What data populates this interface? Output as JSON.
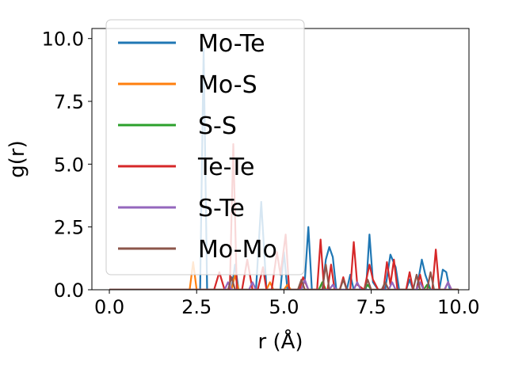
{
  "chart_data": {
    "type": "line",
    "title": "",
    "xlabel": "r (Å)",
    "ylabel": "g(r)",
    "xlim": [
      -0.5,
      10.3
    ],
    "ylim": [
      0,
      10.4
    ],
    "xticks": [
      0.0,
      2.5,
      5.0,
      7.5,
      10.0
    ],
    "xtick_labels": [
      "0.0",
      "2.5",
      "5.0",
      "7.5",
      "10.0"
    ],
    "yticks": [
      0.0,
      2.5,
      5.0,
      7.5,
      10.0
    ],
    "ytick_labels": [
      "0.0",
      "2.5",
      "5.0",
      "7.5",
      "10.0"
    ],
    "grid": false,
    "legend_position": "upper-left",
    "series": [
      {
        "name": "Mo-Te",
        "color": "#1f77b4",
        "points": [
          [
            0,
            0
          ],
          [
            2.6,
            0
          ],
          [
            2.7,
            9.6
          ],
          [
            2.8,
            0
          ],
          [
            3.5,
            0
          ],
          [
            3.6,
            1.0
          ],
          [
            3.7,
            0
          ],
          [
            4.2,
            0
          ],
          [
            4.35,
            3.5
          ],
          [
            4.5,
            0
          ],
          [
            4.9,
            0
          ],
          [
            5.0,
            1.5
          ],
          [
            5.1,
            0
          ],
          [
            5.5,
            0
          ],
          [
            5.6,
            0.4
          ],
          [
            5.7,
            2.5
          ],
          [
            5.8,
            0
          ],
          [
            6.1,
            0
          ],
          [
            6.2,
            1.2
          ],
          [
            6.3,
            1.7
          ],
          [
            6.4,
            1.3
          ],
          [
            6.5,
            0
          ],
          [
            6.8,
            0
          ],
          [
            6.9,
            0.6
          ],
          [
            7.0,
            0
          ],
          [
            7.35,
            0
          ],
          [
            7.45,
            2.2
          ],
          [
            7.55,
            0.3
          ],
          [
            7.7,
            0
          ],
          [
            7.9,
            0
          ],
          [
            8.05,
            1.4
          ],
          [
            8.2,
            0.9
          ],
          [
            8.3,
            0
          ],
          [
            8.5,
            0
          ],
          [
            8.6,
            0.4
          ],
          [
            8.7,
            0
          ],
          [
            8.8,
            0
          ],
          [
            8.95,
            1.2
          ],
          [
            9.05,
            0.6
          ],
          [
            9.2,
            0
          ],
          [
            9.45,
            0
          ],
          [
            9.55,
            0.8
          ],
          [
            9.65,
            0.7
          ],
          [
            9.75,
            0
          ],
          [
            10.0,
            0
          ]
        ]
      },
      {
        "name": "Mo-S",
        "color": "#ff7f0e",
        "points": [
          [
            0,
            0
          ],
          [
            2.3,
            0
          ],
          [
            2.4,
            1.1
          ],
          [
            2.5,
            0
          ],
          [
            3.5,
            0
          ],
          [
            3.6,
            0.6
          ],
          [
            3.7,
            0
          ],
          [
            4.5,
            0
          ],
          [
            4.6,
            0.3
          ],
          [
            4.7,
            0
          ],
          [
            5.0,
            0
          ],
          [
            5.1,
            0.2
          ],
          [
            5.2,
            0
          ],
          [
            6.0,
            0
          ],
          [
            6.1,
            0.3
          ],
          [
            6.2,
            0
          ],
          [
            10.0,
            0
          ]
        ]
      },
      {
        "name": "S-S",
        "color": "#2ca02c",
        "points": [
          [
            0,
            0
          ],
          [
            6.0,
            0
          ],
          [
            6.1,
            0.3
          ],
          [
            6.2,
            0
          ],
          [
            7.3,
            0
          ],
          [
            7.4,
            0.2
          ],
          [
            7.5,
            0
          ],
          [
            9.0,
            0
          ],
          [
            9.1,
            0.2
          ],
          [
            9.2,
            0
          ],
          [
            10.0,
            0
          ]
        ]
      },
      {
        "name": "Te-Te",
        "color": "#d62728",
        "points": [
          [
            0,
            0
          ],
          [
            3.0,
            0
          ],
          [
            3.15,
            0.7
          ],
          [
            3.3,
            0
          ],
          [
            3.45,
            0
          ],
          [
            3.55,
            5.8
          ],
          [
            3.65,
            0
          ],
          [
            3.8,
            0
          ],
          [
            3.95,
            1.2
          ],
          [
            4.1,
            0
          ],
          [
            4.25,
            0
          ],
          [
            4.4,
            0.9
          ],
          [
            4.5,
            0
          ],
          [
            4.65,
            0
          ],
          [
            4.8,
            1.5
          ],
          [
            4.9,
            0.6
          ],
          [
            5.05,
            2.2
          ],
          [
            5.15,
            0
          ],
          [
            5.45,
            0
          ],
          [
            5.55,
            0.5
          ],
          [
            5.7,
            0
          ],
          [
            5.95,
            0
          ],
          [
            6.05,
            2.0
          ],
          [
            6.15,
            0
          ],
          [
            6.25,
            0
          ],
          [
            6.35,
            1.0
          ],
          [
            6.45,
            0
          ],
          [
            6.6,
            0
          ],
          [
            6.7,
            0.5
          ],
          [
            6.8,
            0
          ],
          [
            6.9,
            0
          ],
          [
            7.0,
            1.9
          ],
          [
            7.1,
            0.2
          ],
          [
            7.3,
            0
          ],
          [
            7.45,
            1.0
          ],
          [
            7.55,
            0.4
          ],
          [
            7.7,
            0
          ],
          [
            7.85,
            0
          ],
          [
            7.95,
            1.1
          ],
          [
            8.05,
            0.2
          ],
          [
            8.15,
            1.2
          ],
          [
            8.25,
            0
          ],
          [
            8.5,
            0
          ],
          [
            8.6,
            0.7
          ],
          [
            8.7,
            0
          ],
          [
            8.8,
            0
          ],
          [
            8.9,
            0.6
          ],
          [
            9.0,
            0
          ],
          [
            9.25,
            0
          ],
          [
            9.35,
            1.6
          ],
          [
            9.45,
            0
          ],
          [
            9.6,
            0
          ],
          [
            9.7,
            0.3
          ],
          [
            9.8,
            0
          ],
          [
            10.0,
            0
          ]
        ]
      },
      {
        "name": "S-Te",
        "color": "#9467bd",
        "points": [
          [
            0,
            0
          ],
          [
            3.3,
            0
          ],
          [
            3.4,
            0.3
          ],
          [
            3.5,
            0
          ],
          [
            4.0,
            0
          ],
          [
            4.1,
            0.3
          ],
          [
            4.2,
            0
          ],
          [
            5.5,
            0
          ],
          [
            5.6,
            0.4
          ],
          [
            5.7,
            0
          ],
          [
            6.3,
            0
          ],
          [
            6.4,
            0.2
          ],
          [
            6.5,
            0
          ],
          [
            7.0,
            0
          ],
          [
            7.1,
            0.3
          ],
          [
            7.2,
            0
          ],
          [
            8.0,
            0
          ],
          [
            8.1,
            0.3
          ],
          [
            8.2,
            0
          ],
          [
            8.8,
            0
          ],
          [
            8.9,
            0.3
          ],
          [
            9.0,
            0
          ],
          [
            9.6,
            0
          ],
          [
            9.7,
            0.3
          ],
          [
            9.8,
            0
          ],
          [
            9.9,
            0
          ]
        ]
      },
      {
        "name": "Mo-Mo",
        "color": "#8c564b",
        "points": [
          [
            0,
            0
          ],
          [
            3.4,
            0
          ],
          [
            3.5,
            0.5
          ],
          [
            3.6,
            0
          ],
          [
            5.4,
            0
          ],
          [
            5.5,
            0.4
          ],
          [
            5.6,
            0
          ],
          [
            6.1,
            0
          ],
          [
            6.2,
            1.0
          ],
          [
            6.3,
            0
          ],
          [
            6.6,
            0
          ],
          [
            6.7,
            0.4
          ],
          [
            6.8,
            0
          ],
          [
            7.3,
            0
          ],
          [
            7.4,
            0.4
          ],
          [
            7.5,
            0
          ],
          [
            7.8,
            0
          ],
          [
            7.9,
            0.3
          ],
          [
            8.0,
            0
          ],
          [
            8.7,
            0
          ],
          [
            8.8,
            0.6
          ],
          [
            8.9,
            0
          ],
          [
            9.1,
            0
          ],
          [
            9.2,
            0.7
          ],
          [
            9.3,
            0
          ],
          [
            10.0,
            0
          ]
        ]
      }
    ]
  }
}
